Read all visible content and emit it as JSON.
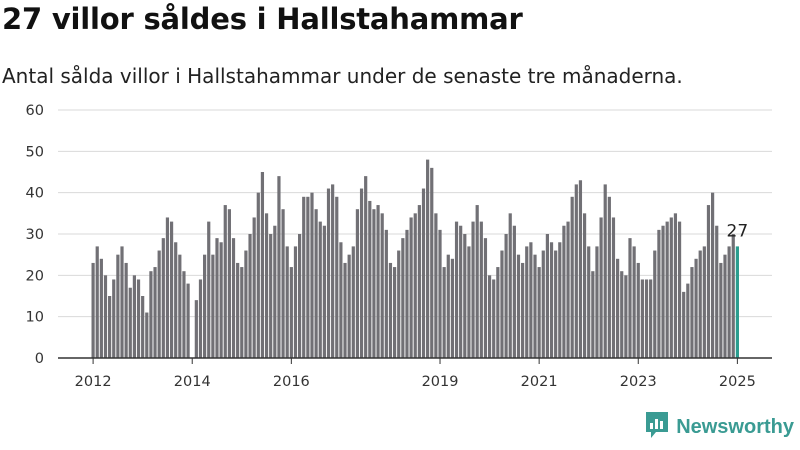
{
  "title": "27 villor såldes i Hallstahammar",
  "subtitle": "Antal sålda villor i Hallstahammar under de senaste tre månaderna.",
  "brand": {
    "name": "Newsworthy",
    "icon": "newsworthy-logo-icon",
    "color": "#3a9b93"
  },
  "colors": {
    "bar": "#717075",
    "highlight": "#2a9d8f",
    "grid": "#d9d9d9",
    "axis": "#333333"
  },
  "chart_data": {
    "type": "bar",
    "title": "27 villor såldes i Hallstahammar",
    "subtitle": "Antal sålda villor i Hallstahammar under de senaste tre månaderna.",
    "xlabel": "",
    "ylabel": "",
    "ylim": [
      0,
      60
    ],
    "yticks": [
      0,
      10,
      20,
      30,
      40,
      50,
      60
    ],
    "xticks": [
      "2012",
      "2014",
      "2016",
      "2019",
      "2021",
      "2023",
      "2025"
    ],
    "grid": true,
    "highlight_label": "27",
    "x": [
      "2012-01",
      "2012-02",
      "2012-03",
      "2012-04",
      "2012-05",
      "2012-06",
      "2012-07",
      "2012-08",
      "2012-09",
      "2012-10",
      "2012-11",
      "2012-12",
      "2013-01",
      "2013-02",
      "2013-03",
      "2013-04",
      "2013-05",
      "2013-06",
      "2013-07",
      "2013-08",
      "2013-09",
      "2013-10",
      "2013-11",
      "2013-12",
      "2014-01",
      "2014-02",
      "2014-03",
      "2014-04",
      "2014-05",
      "2014-06",
      "2014-07",
      "2014-08",
      "2014-09",
      "2014-10",
      "2014-11",
      "2014-12",
      "2015-01",
      "2015-02",
      "2015-03",
      "2015-04",
      "2015-05",
      "2015-06",
      "2015-07",
      "2015-08",
      "2015-09",
      "2015-10",
      "2015-11",
      "2015-12",
      "2016-01",
      "2016-02",
      "2016-03",
      "2016-04",
      "2016-05",
      "2016-06",
      "2016-07",
      "2016-08",
      "2016-09",
      "2016-10",
      "2016-11",
      "2016-12",
      "2017-01",
      "2017-02",
      "2017-03",
      "2017-04",
      "2017-05",
      "2017-06",
      "2017-07",
      "2017-08",
      "2017-09",
      "2017-10",
      "2017-11",
      "2017-12",
      "2018-01",
      "2018-02",
      "2018-03",
      "2018-04",
      "2018-05",
      "2018-06",
      "2018-07",
      "2018-08",
      "2018-09",
      "2018-10",
      "2018-11",
      "2018-12",
      "2019-01",
      "2019-02",
      "2019-03",
      "2019-04",
      "2019-05",
      "2019-06",
      "2019-07",
      "2019-08",
      "2019-09",
      "2019-10",
      "2019-11",
      "2019-12",
      "2020-01",
      "2020-02",
      "2020-03",
      "2020-04",
      "2020-05",
      "2020-06",
      "2020-07",
      "2020-08",
      "2020-09",
      "2020-10",
      "2020-11",
      "2020-12",
      "2021-01",
      "2021-02",
      "2021-03",
      "2021-04",
      "2021-05",
      "2021-06",
      "2021-07",
      "2021-08",
      "2021-09",
      "2021-10",
      "2021-11",
      "2021-12",
      "2022-01",
      "2022-02",
      "2022-03",
      "2022-04",
      "2022-05",
      "2022-06",
      "2022-07",
      "2022-08",
      "2022-09",
      "2022-10",
      "2022-11",
      "2022-12",
      "2023-01",
      "2023-02",
      "2023-03",
      "2023-04",
      "2023-05",
      "2023-06",
      "2023-07",
      "2023-08",
      "2023-09",
      "2023-10",
      "2023-11",
      "2023-12",
      "2024-01",
      "2024-02",
      "2024-03",
      "2024-04",
      "2024-05",
      "2024-06",
      "2024-07",
      "2024-08",
      "2024-09",
      "2024-10",
      "2024-11",
      "2024-12",
      "2025-01"
    ],
    "values": [
      23,
      27,
      24,
      20,
      15,
      19,
      25,
      27,
      23,
      17,
      20,
      19,
      15,
      11,
      21,
      22,
      26,
      29,
      34,
      33,
      28,
      25,
      21,
      18,
      null,
      14,
      19,
      25,
      33,
      25,
      29,
      28,
      37,
      36,
      29,
      23,
      22,
      26,
      30,
      34,
      40,
      45,
      35,
      30,
      32,
      44,
      36,
      27,
      22,
      27,
      30,
      39,
      39,
      40,
      36,
      33,
      32,
      41,
      42,
      39,
      28,
      23,
      25,
      27,
      36,
      41,
      44,
      38,
      36,
      37,
      35,
      31,
      23,
      22,
      26,
      29,
      31,
      34,
      35,
      37,
      41,
      48,
      46,
      35,
      31,
      22,
      25,
      24,
      33,
      32,
      30,
      27,
      33,
      37,
      33,
      29,
      20,
      19,
      22,
      26,
      30,
      35,
      32,
      25,
      23,
      27,
      28,
      25,
      22,
      26,
      30,
      28,
      26,
      28,
      32,
      33,
      39,
      42,
      43,
      35,
      27,
      21,
      27,
      34,
      42,
      39,
      34,
      24,
      21,
      20,
      29,
      27,
      23,
      19,
      19,
      19,
      26,
      31,
      32,
      33,
      34,
      35,
      33,
      16,
      18,
      22,
      24,
      26,
      27,
      37,
      40,
      32,
      23,
      25,
      27,
      30,
      27
    ]
  }
}
